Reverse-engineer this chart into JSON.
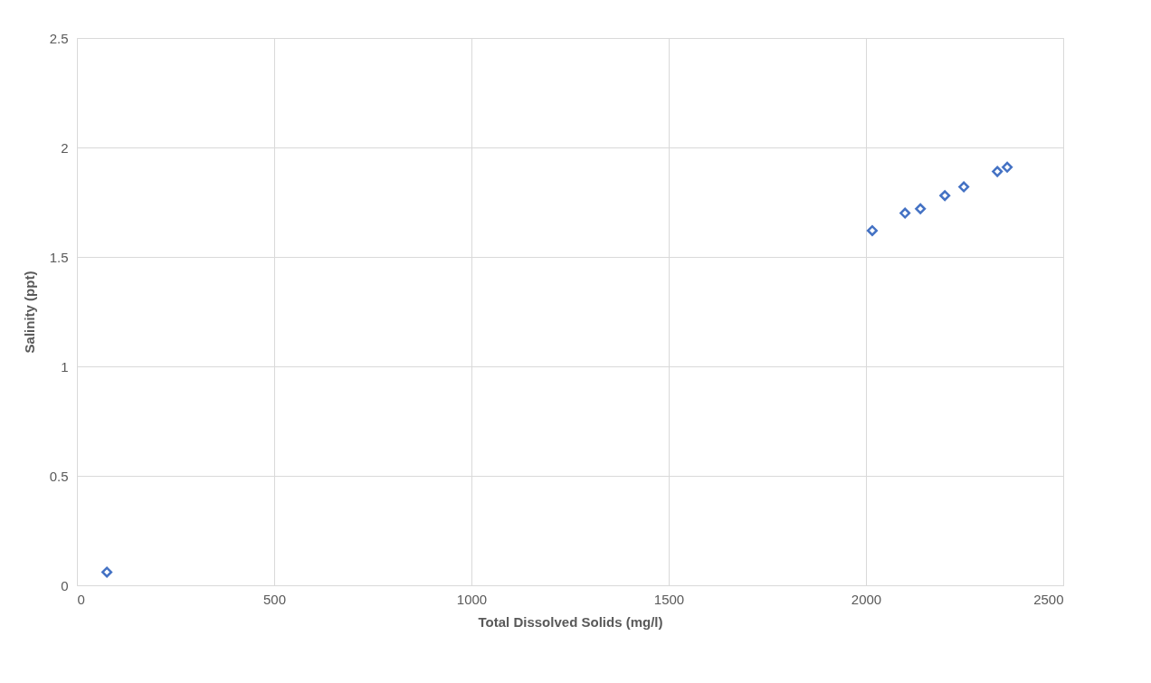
{
  "chart_data": {
    "type": "scatter",
    "xlabel": "Total Dissolved Solids (mg/l)",
    "ylabel": "Salinity (ppt)",
    "x": [
      76,
      2016,
      2099,
      2138,
      2200,
      2248,
      2333,
      2358
    ],
    "series": [
      {
        "color": "#4472c4",
        "values": [
          0.06,
          1.62,
          1.7,
          1.72,
          1.78,
          1.82,
          1.89,
          1.91
        ]
      }
    ],
    "xlim": [
      0,
      2500
    ],
    "xticks": [
      0,
      500,
      1000,
      1500,
      2000,
      2500
    ],
    "ylim": [
      0,
      2.5
    ],
    "yticks": [
      0,
      0.5,
      1,
      1.5,
      2,
      2.5
    ],
    "grid": true,
    "marker": "diamond"
  }
}
